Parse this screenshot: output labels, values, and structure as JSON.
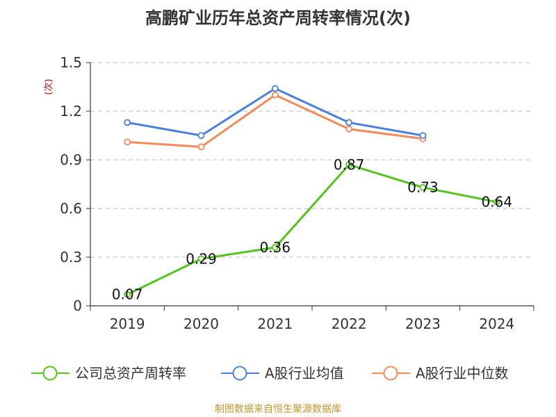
{
  "chart_data": {
    "type": "line",
    "title": "高鹏矿业历年总资产周转率情况(次)",
    "ylabel": "(次)",
    "xlabel": "",
    "categories": [
      "2019",
      "2020",
      "2021",
      "2022",
      "2023",
      "2024"
    ],
    "ylim": [
      0,
      1.5
    ],
    "yticks": [
      "0",
      "0.3",
      "0.6",
      "0.9",
      "1.2",
      "1.5"
    ],
    "grid": true,
    "legend_position": "bottom",
    "series": [
      {
        "name": "公司总资产周转率",
        "color": "#52c41a",
        "values": [
          0.07,
          0.29,
          0.36,
          0.87,
          0.73,
          0.64
        ],
        "labels": [
          "0.07",
          "0.29",
          "0.36",
          "0.87",
          "0.73",
          "0.64"
        ]
      },
      {
        "name": "A股行业均值",
        "color": "#4a7fe0",
        "values": [
          1.13,
          1.05,
          1.34,
          1.13,
          1.05,
          null
        ]
      },
      {
        "name": "A股行业中位数",
        "color": "#f5895a",
        "values": [
          1.01,
          0.98,
          1.3,
          1.09,
          1.03,
          null
        ]
      }
    ]
  },
  "source_note": "制图数据来自恒生聚源数据库"
}
